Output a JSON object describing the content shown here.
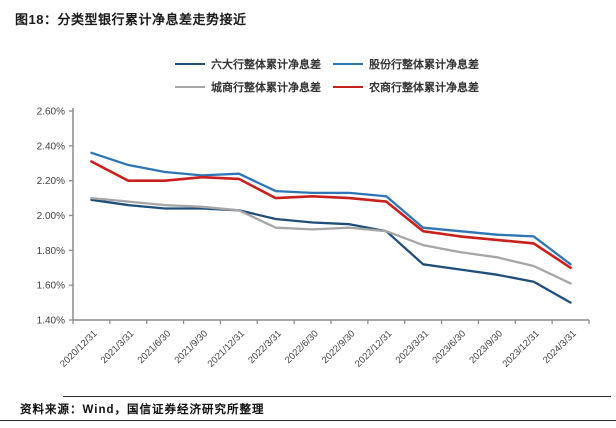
{
  "figure": {
    "title": "图18：分类型银行累计净息差走势接近",
    "source": "资料来源：Wind，国信证券经济研究所整理"
  },
  "chart_data": {
    "type": "line",
    "title": "分类型银行累计净息差走势接近",
    "xlabel": "",
    "ylabel": "",
    "ylim": [
      1.4,
      2.6
    ],
    "y_tick_step": 0.2,
    "y_ticks": [
      "2.60%",
      "2.40%",
      "2.20%",
      "2.00%",
      "1.80%",
      "1.60%",
      "1.40%"
    ],
    "grid": false,
    "legend_position": "top",
    "legend_rows": [
      [
        0,
        1
      ],
      [
        2,
        3
      ]
    ],
    "axis_color": "#8c8c8c",
    "tick_label_color": "#404040",
    "categories": [
      "2020/12/31",
      "2021/3/31",
      "2021/6/30",
      "2021/9/30",
      "2021/12/31",
      "2022/3/31",
      "2022/6/30",
      "2022/9/30",
      "2022/12/31",
      "2023/3/31",
      "2023/6/30",
      "2023/9/30",
      "2023/12/31",
      "2024/3/31"
    ],
    "series": [
      {
        "name": "六大行整体累计净息差",
        "color": "#1f4e79",
        "values": [
          2.09,
          2.06,
          2.04,
          2.04,
          2.03,
          1.98,
          1.96,
          1.95,
          1.91,
          1.72,
          1.69,
          1.66,
          1.62,
          1.5
        ]
      },
      {
        "name": "股份行整体累计净息差",
        "color": "#2e75b6",
        "values": [
          2.36,
          2.29,
          2.25,
          2.23,
          2.24,
          2.14,
          2.13,
          2.13,
          2.11,
          1.93,
          1.91,
          1.89,
          1.88,
          1.72
        ]
      },
      {
        "name": "城商行整体累计净息差",
        "color": "#a6a6a6",
        "values": [
          2.1,
          2.08,
          2.06,
          2.05,
          2.03,
          1.93,
          1.92,
          1.93,
          1.91,
          1.83,
          1.79,
          1.76,
          1.71,
          1.61
        ]
      },
      {
        "name": "农商行整体累计净息差",
        "color": "#c9201d",
        "values": [
          2.31,
          2.2,
          2.2,
          2.22,
          2.21,
          2.1,
          2.11,
          2.1,
          2.08,
          1.91,
          1.88,
          1.86,
          1.84,
          1.7
        ]
      }
    ]
  }
}
